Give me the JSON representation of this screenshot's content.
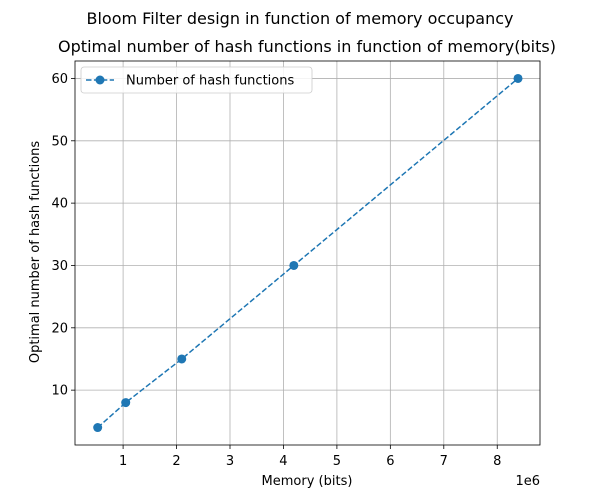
{
  "chart_data": {
    "type": "line",
    "suptitle": "Bloom Filter design in function of memory occupancy",
    "title": "Optimal number of hash functions in function of memory(bits)",
    "xlabel": "Memory (bits)",
    "ylabel": "Optimal number of hash functions",
    "x_offset_label": "1e6",
    "x_scale": 1000000,
    "xlim": [
      100000,
      8800000
    ],
    "ylim": [
      1.2,
      62.8
    ],
    "x_ticks": [
      1,
      2,
      3,
      4,
      5,
      6,
      7,
      8
    ],
    "y_ticks": [
      10,
      20,
      30,
      40,
      50,
      60
    ],
    "grid": true,
    "legend_position": "upper-left",
    "series": [
      {
        "name": "Number of hash functions",
        "color": "#1f77b4",
        "line_style": "dashed",
        "marker": "circle",
        "x": [
          524288,
          1048576,
          2097152,
          4194304,
          8388608
        ],
        "y": [
          4,
          8,
          15,
          30,
          60
        ]
      }
    ]
  }
}
